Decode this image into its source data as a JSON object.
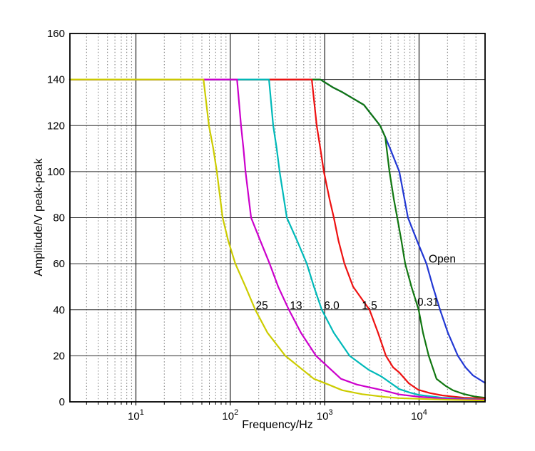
{
  "figure": {
    "background": "#ffffff",
    "axis_color": "#000000",
    "grid_minor_color": "#777777",
    "grid_major_color": "#3d3d3d"
  },
  "chart_data": {
    "type": "line",
    "title": "",
    "xlabel": "Frequency/Hz",
    "ylabel": "Amplitude/V peak-peak",
    "x_scale": "log",
    "xlim": [
      2,
      50000
    ],
    "ylim": [
      0,
      160
    ],
    "x_ticks": [
      10,
      100,
      1000,
      10000
    ],
    "y_ticks": [
      0,
      20,
      40,
      60,
      80,
      100,
      120,
      140,
      160
    ],
    "grid": "on",
    "legend_position": "inline-curve-labels",
    "series": [
      {
        "name": "Open",
        "color": "#2238d4",
        "label": {
          "text": "Open",
          "f": 17600,
          "a": 62
        },
        "points": [
          [
            2,
            140
          ],
          [
            900,
            140
          ],
          [
            1230,
            136.5
          ],
          [
            1540,
            134.5
          ],
          [
            2600,
            129
          ],
          [
            3870,
            120
          ],
          [
            4380,
            115
          ],
          [
            4930,
            110
          ],
          [
            6180,
            100
          ],
          [
            6870,
            90
          ],
          [
            7620,
            80
          ],
          [
            9500,
            70
          ],
          [
            11970,
            60
          ],
          [
            14020,
            50
          ],
          [
            16670,
            40
          ],
          [
            20180,
            30
          ],
          [
            25770,
            20
          ],
          [
            31000,
            15
          ],
          [
            37150,
            11.5
          ],
          [
            50000,
            8.2
          ]
        ]
      },
      {
        "name": "0.31",
        "color": "#117711",
        "label": {
          "text": "0.31",
          "f": 12440,
          "a": 43.4
        },
        "points": [
          [
            2,
            140
          ],
          [
            900,
            140
          ],
          [
            1230,
            136.5
          ],
          [
            1540,
            134.5
          ],
          [
            2600,
            129
          ],
          [
            3870,
            120
          ],
          [
            4380,
            115
          ],
          [
            4860,
            100
          ],
          [
            5400,
            88
          ],
          [
            5870,
            80
          ],
          [
            6500,
            70
          ],
          [
            7120,
            60
          ],
          [
            8300,
            50
          ],
          [
            9900,
            40
          ],
          [
            11000,
            30
          ],
          [
            12640,
            20
          ],
          [
            15300,
            10
          ],
          [
            19000,
            7
          ],
          [
            22850,
            5
          ],
          [
            29650,
            3.4
          ],
          [
            40000,
            2.2
          ],
          [
            50000,
            1.8
          ]
        ]
      },
      {
        "name": "1.5",
        "color": "#ee1111",
        "label": {
          "text": "1.5",
          "f": 2985,
          "a": 41.8
        },
        "points": [
          [
            2,
            140
          ],
          [
            730,
            140
          ],
          [
            824,
            120
          ],
          [
            900,
            110
          ],
          [
            980,
            100
          ],
          [
            1127,
            88
          ],
          [
            1250,
            80
          ],
          [
            1400,
            70
          ],
          [
            1620,
            60
          ],
          [
            2000,
            50
          ],
          [
            2985,
            40
          ],
          [
            3675,
            30
          ],
          [
            4450,
            20
          ],
          [
            5300,
            15
          ],
          [
            6190,
            12.7
          ],
          [
            7800,
            8
          ],
          [
            9750,
            5.3
          ],
          [
            13000,
            3.8
          ],
          [
            17600,
            2.8
          ],
          [
            30000,
            1.8
          ],
          [
            50000,
            1.4
          ]
        ]
      },
      {
        "name": "6.0",
        "color": "#00b9b9",
        "label": {
          "text": "6.0",
          "f": 1186,
          "a": 41.8
        },
        "points": [
          [
            2,
            140
          ],
          [
            257,
            140
          ],
          [
            285,
            120
          ],
          [
            310,
            110
          ],
          [
            333,
            100
          ],
          [
            397,
            80
          ],
          [
            510,
            70
          ],
          [
            646,
            60
          ],
          [
            770,
            50
          ],
          [
            931,
            40
          ],
          [
            1251,
            30
          ],
          [
            1836,
            20
          ],
          [
            2900,
            14
          ],
          [
            4000,
            11
          ],
          [
            6190,
            5.5
          ],
          [
            8000,
            4
          ],
          [
            10000,
            3
          ],
          [
            17600,
            1.8
          ],
          [
            50000,
            0.9
          ]
        ]
      },
      {
        "name": "13",
        "color": "#cc00cc",
        "label": {
          "text": "13",
          "f": 497,
          "a": 41.8
        },
        "points": [
          [
            2,
            140
          ],
          [
            118,
            140
          ],
          [
            130,
            120
          ],
          [
            138,
            110
          ],
          [
            145,
            100
          ],
          [
            166,
            80
          ],
          [
            208,
            70
          ],
          [
            261,
            60
          ],
          [
            322,
            50
          ],
          [
            418,
            40
          ],
          [
            561,
            30
          ],
          [
            809,
            20
          ],
          [
            1489,
            10
          ],
          [
            2200,
            7.5
          ],
          [
            4150,
            5
          ],
          [
            6190,
            3.2
          ],
          [
            10000,
            2.2
          ],
          [
            20000,
            1.3
          ],
          [
            50000,
            0.8
          ]
        ]
      },
      {
        "name": "25",
        "color": "#cccc00",
        "label": {
          "text": "25",
          "f": 216,
          "a": 41.8
        },
        "points": [
          [
            2,
            140
          ],
          [
            52,
            140
          ],
          [
            59.4,
            120
          ],
          [
            66,
            110
          ],
          [
            72,
            100
          ],
          [
            83,
            80
          ],
          [
            95,
            70
          ],
          [
            113,
            60
          ],
          [
            145,
            50
          ],
          [
            184,
            40
          ],
          [
            248,
            30
          ],
          [
            383,
            20
          ],
          [
            768,
            10
          ],
          [
            1100,
            7.5
          ],
          [
            1540,
            5
          ],
          [
            2500,
            3.3
          ],
          [
            4380,
            2.1
          ],
          [
            6200,
            1.6
          ],
          [
            20000,
            0.9
          ],
          [
            50000,
            0.6
          ]
        ]
      }
    ]
  }
}
